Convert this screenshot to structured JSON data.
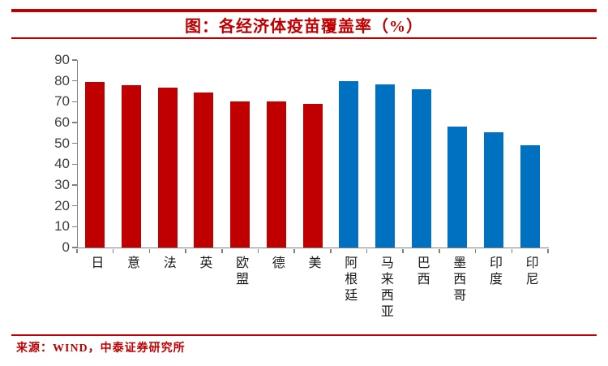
{
  "chart_data": {
    "type": "bar",
    "title": "图：各经济体疫苗覆盖率（%）",
    "categories": [
      "日",
      "意",
      "法",
      "英",
      "欧盟",
      "德",
      "美",
      "阿根廷",
      "马来西亚",
      "巴西",
      "墨西哥",
      "印度",
      "印尼"
    ],
    "values": [
      79.4,
      78.0,
      76.9,
      74.6,
      70.3,
      70.0,
      68.8,
      79.9,
      78.3,
      76.0,
      57.9,
      55.2,
      48.9
    ],
    "bar_colors": [
      "#C00000",
      "#C00000",
      "#C00000",
      "#C00000",
      "#C00000",
      "#C00000",
      "#C00000",
      "#0070C0",
      "#0070C0",
      "#0070C0",
      "#0070C0",
      "#0070C0",
      "#0070C0"
    ],
    "ylabel": "",
    "xlabel": "",
    "ylim": [
      0,
      90
    ],
    "ytick_step": 10,
    "yticks": [
      0,
      10,
      20,
      30,
      40,
      50,
      60,
      70,
      80,
      90
    ],
    "grid": false,
    "legend": null,
    "accent_red": "#C00000",
    "accent_blue": "#0070C0"
  },
  "source": {
    "label": "来源：WIND，中泰证券研究所"
  }
}
